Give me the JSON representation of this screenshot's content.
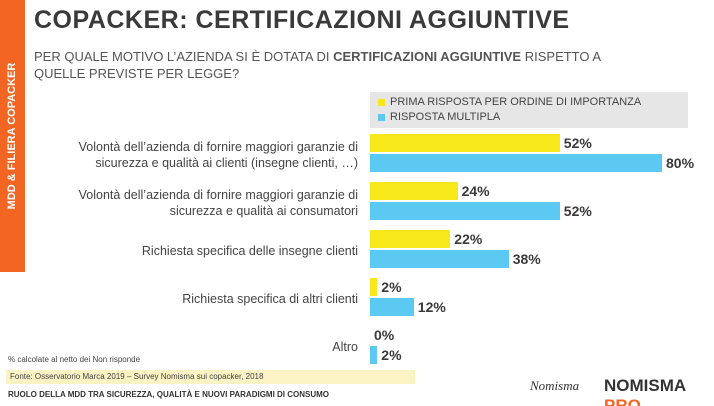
{
  "sidebar": "MDD & FILIERA COPACKER",
  "chart_data": {
    "type": "bar",
    "orientation": "horizontal",
    "title": "COPACKER: CERTIFICAZIONI AGGIUNTIVE",
    "subtitle": [
      "PER QUALE MOTIVO L’AZIENDA SI È DOTATA DI ",
      "CERTIFICAZIONI AGGIUNTIVE",
      " RISPETTO A QUELLE PREVISTE PER LEGGE?"
    ],
    "categories": [
      "Volontà dell’azienda di fornire maggiori garanzie di sicurezza e qualità ai clienti (insegne clienti, …)",
      "Volontà dell’azienda di fornire maggiori garanzie di sicurezza e qualità ai consumatori",
      "Richiesta specifica delle insegne clienti",
      "Richiesta specifica di altri clienti",
      "Altro"
    ],
    "series": [
      {
        "name": "PRIMA RISPOSTA PER ORDINE DI IMPORTANZA",
        "color": "#f7e81c",
        "values": [
          52,
          24,
          22,
          2,
          0
        ],
        "value_labels": [
          "52%",
          "24%",
          "22%",
          "2%",
          "0%"
        ]
      },
      {
        "name": "RISPOSTA MULTIPLA",
        "color": "#5cc9f2",
        "values": [
          80,
          52,
          38,
          12,
          2
        ],
        "value_labels": [
          "80%",
          "52%",
          "38%",
          "12%",
          "2%"
        ]
      }
    ],
    "legend_position": "top-right"
  },
  "footnote": "% calcolate al netto dei Non risponde",
  "source": "Fonte: Osservatorio Marca 2019 – Survey Nomisma sui copacker, 2018",
  "footer": "RUOLO DELLA MDD TRA SICUREZZA, QUALITÀ E NUOVI PARADIGMI DI CONSUMO",
  "logos": {
    "nomisma": "Nomisma",
    "nomisma_pro": [
      "NOMISMA",
      "PRO"
    ]
  }
}
